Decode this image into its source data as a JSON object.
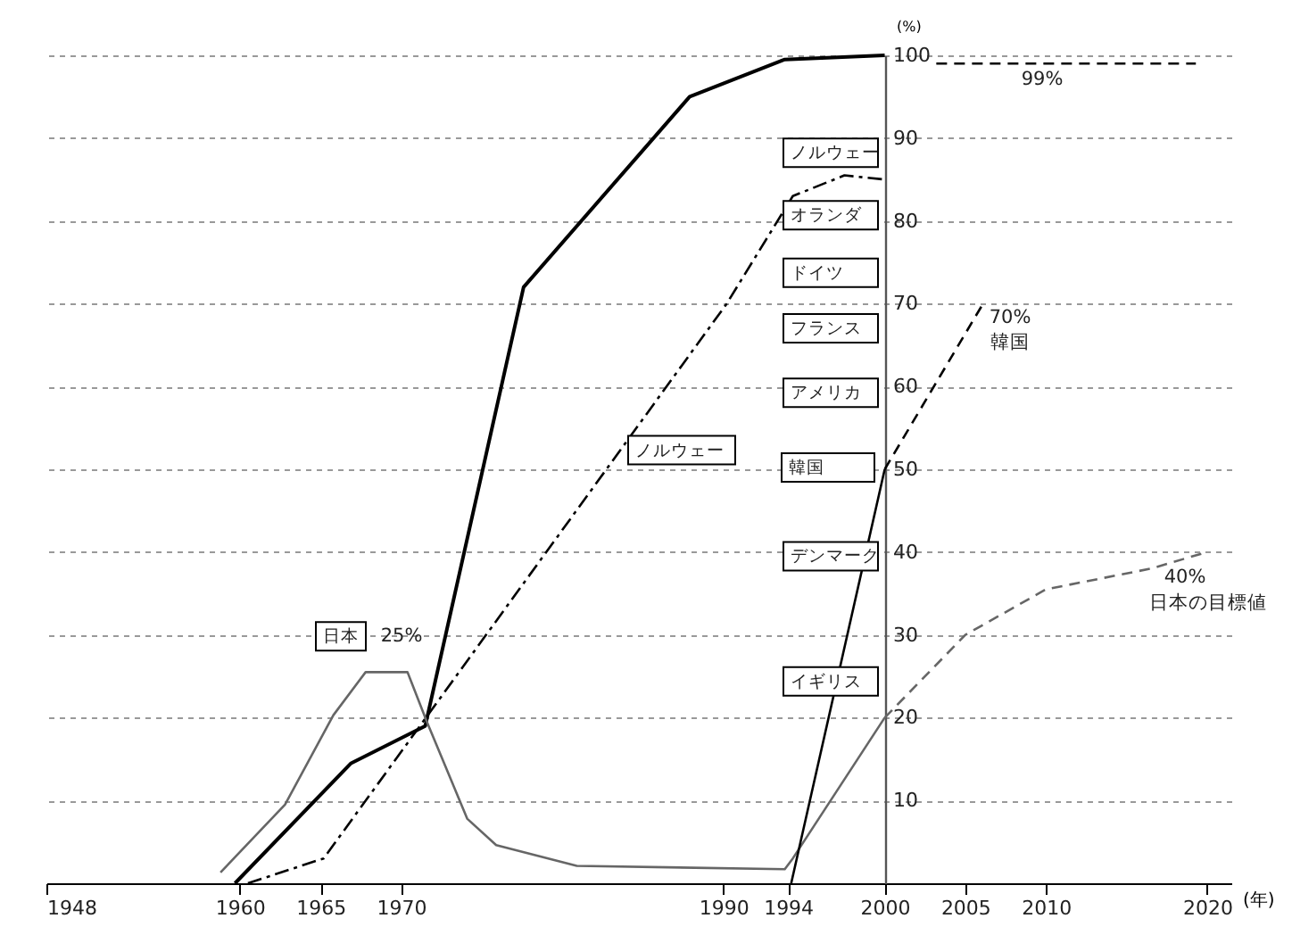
{
  "chart_data": {
    "type": "line",
    "xlabel": "(年)",
    "ylabel": "(%)",
    "xlim": [
      1948,
      2021.5
    ],
    "ylim": [
      0,
      100
    ],
    "xticks": [
      1948,
      1960,
      1965,
      1970,
      1990,
      1994,
      2000,
      2005,
      2010,
      2020
    ],
    "yticks": [
      10,
      20,
      30,
      40,
      50,
      60,
      70,
      80,
      90,
      100
    ],
    "grid": "y",
    "series": [
      {
        "color": "#000000",
        "line_style": "solid",
        "x": [
          1959.7,
          1966.9,
          1971.5,
          1977.6,
          1987.9,
          1993.8,
          2000
        ],
        "values": [
          0,
          14.5,
          19,
          72,
          95,
          99.5,
          100
        ]
      },
      {
        "color": "#000000",
        "line_style": "dashdot",
        "x": [
          1960.5,
          1965.2,
          1990.2,
          1994.3,
          1997.5,
          2000
        ],
        "values": [
          0,
          3,
          70,
          83,
          85.5,
          85
        ]
      },
      {
        "color": "#666666",
        "line_style": "solid",
        "x": [
          1958.8,
          1962.8,
          1965.8,
          1967.8,
          1970.4,
          1971.6,
          1974.1,
          1975.9,
          1980.9,
          1993.8,
          1994.3,
          2000
        ],
        "values": [
          1.3,
          9.5,
          20.3,
          25.5,
          25.5,
          19.5,
          7.8,
          4.6,
          2.1,
          1.7,
          3,
          20
        ]
      },
      {
        "color": "#000000",
        "line_style": "solid",
        "x": [
          1994.2,
          2000
        ],
        "values": [
          0,
          50
        ]
      },
      {
        "color": "#000000",
        "line_style": "dashed",
        "x": [
          2000,
          2006.1
        ],
        "values": [
          50,
          70
        ]
      },
      {
        "color": "#666666",
        "line_style": "dashed",
        "x": [
          2000,
          2005,
          2010,
          2016.5,
          2020
        ],
        "values": [
          20,
          30,
          35.5,
          38,
          40
        ]
      },
      {
        "color": "#000000",
        "line_style": "dashed",
        "x": [
          2003.2,
          2019.3
        ],
        "values": [
          99,
          99
        ]
      }
    ],
    "annotations": [
      "99%",
      "70%",
      "韓国",
      "40%",
      "日本の目標値",
      "ノルウェー",
      "オランダ",
      "ドイツ",
      "フランス",
      "アメリカ",
      "韓国",
      "デンマーク",
      "イギリス",
      "ノルウェー",
      "日本",
      "25%"
    ]
  }
}
